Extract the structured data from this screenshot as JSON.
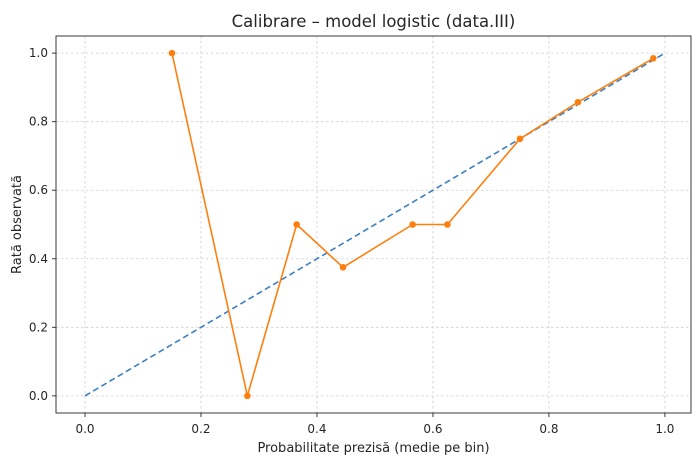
{
  "chart_data": {
    "type": "line",
    "title": "Calibrare – model logistic (data.III)",
    "xlabel": "Probabilitate prezisă (medie pe bin)",
    "ylabel": "Rată observată",
    "xlim": [
      -0.05,
      1.045
    ],
    "ylim": [
      -0.05,
      1.05
    ],
    "xticks": [
      0.0,
      0.2,
      0.4,
      0.6,
      0.8,
      1.0
    ],
    "xtick_labels": [
      "0.0",
      "0.2",
      "0.4",
      "0.6",
      "0.8",
      "1.0"
    ],
    "yticks": [
      0.0,
      0.2,
      0.4,
      0.6,
      0.8,
      1.0
    ],
    "ytick_labels": [
      "0.0",
      "0.2",
      "0.4",
      "0.6",
      "0.8",
      "1.0"
    ],
    "grid": true,
    "series": [
      {
        "style": "dashed",
        "color": "#3b7fc4",
        "markers": false,
        "x": [
          0.0,
          1.0
        ],
        "y": [
          0.0,
          1.0
        ]
      },
      {
        "style": "solid",
        "color": "#ff7f0e",
        "markers": true,
        "x": [
          0.15,
          0.28,
          0.365,
          0.445,
          0.565,
          0.625,
          0.75,
          0.85,
          0.98
        ],
        "y": [
          1.0,
          0.0,
          0.5,
          0.375,
          0.5,
          0.5,
          0.75,
          0.857,
          0.985
        ]
      }
    ]
  }
}
